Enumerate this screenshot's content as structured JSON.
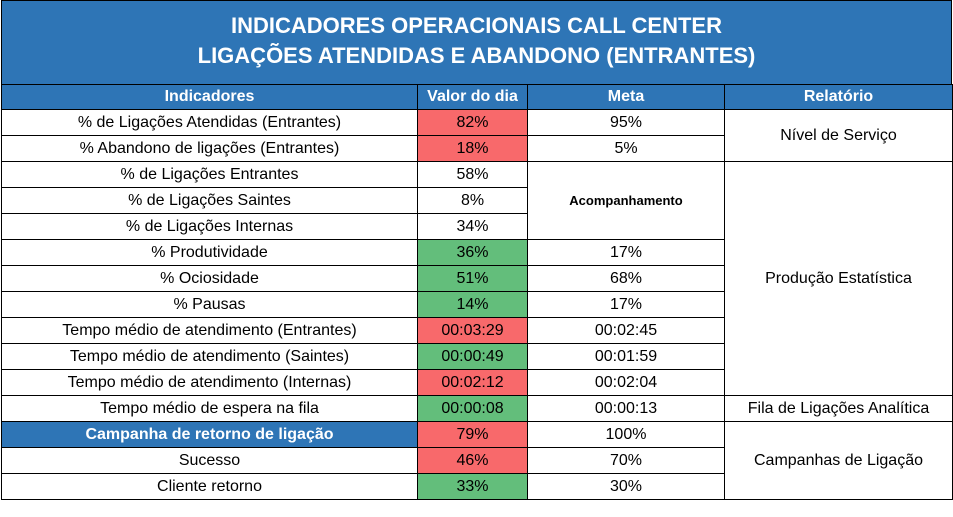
{
  "title": {
    "line1": "INDICADORES OPERACIONAIS CALL CENTER",
    "line2": "LIGAÇÕES ATENDIDAS E ABANDONO (ENTRANTES)"
  },
  "headers": {
    "indicadores": "Indicadores",
    "valor": "Valor do dia",
    "meta": "Meta",
    "relatorio": "Relatório"
  },
  "rows": [
    {
      "indicador": "% de Ligações Atendidas (Entrantes)",
      "valor": "82%",
      "meta": "95%"
    },
    {
      "indicador": "% Abandono de ligações (Entrantes)",
      "valor": "18%",
      "meta": "5%"
    },
    {
      "indicador": "% de Ligações Entrantes",
      "valor": "58%",
      "meta": ""
    },
    {
      "indicador": "% de Ligações Saintes",
      "valor": "8%",
      "meta": ""
    },
    {
      "indicador": "% de Ligações Internas",
      "valor": "34%",
      "meta": ""
    },
    {
      "indicador": "% Produtividade",
      "valor": "36%",
      "meta": "17%"
    },
    {
      "indicador": "% Ociosidade",
      "valor": "51%",
      "meta": "68%"
    },
    {
      "indicador": "% Pausas",
      "valor": "14%",
      "meta": "17%"
    },
    {
      "indicador": "Tempo médio de atendimento (Entrantes)",
      "valor": "00:03:29",
      "meta": "00:02:45"
    },
    {
      "indicador": "Tempo médio de atendimento (Saintes)",
      "valor": "00:00:49",
      "meta": "00:01:59"
    },
    {
      "indicador": "Tempo médio de atendimento (Internas)",
      "valor": "00:02:12",
      "meta": "00:02:04"
    },
    {
      "indicador": "Tempo médio de espera na fila",
      "valor": "00:00:08",
      "meta": "00:00:13"
    },
    {
      "indicador": "Campanha de retorno de ligação",
      "valor": "79%",
      "meta": "100%"
    },
    {
      "indicador": "Sucesso",
      "valor": "46%",
      "meta": "70%"
    },
    {
      "indicador": "Cliente retorno",
      "valor": "33%",
      "meta": "30%"
    }
  ],
  "acompanhamento": "Acompanhamento",
  "relatorio": {
    "nivel_servico": "Nível de Serviço",
    "producao": "Produção Estatística",
    "fila": "Fila de Ligações Analítica",
    "campanhas": "Campanhas de Ligação"
  },
  "colors": {
    "header_blue": "#2e75b6",
    "red": "#f8696b",
    "green": "#63be7b"
  }
}
